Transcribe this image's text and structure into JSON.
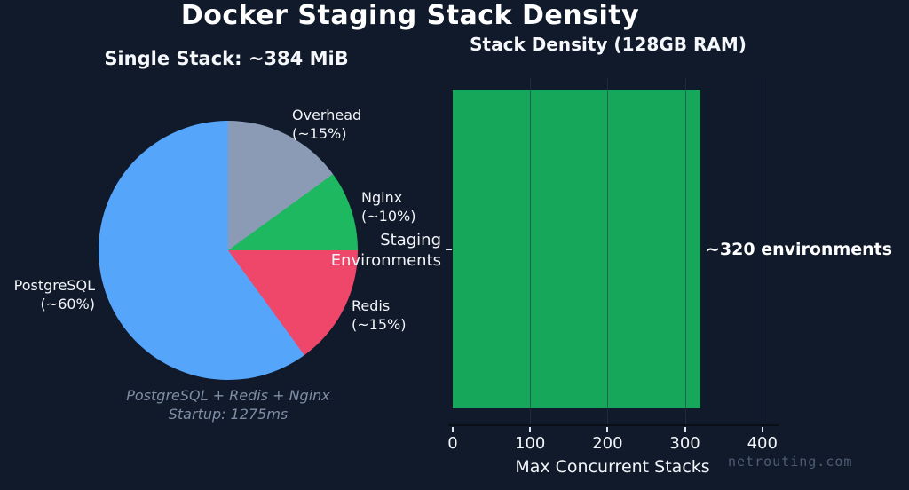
{
  "page": {
    "background": "#111a2b",
    "watermark": "netrouting.com"
  },
  "title": "Docker Staging Stack Density",
  "chart_data": [
    {
      "type": "pie",
      "title": "Single Stack: ~384 MiB",
      "start_angle": "top-clockwise",
      "slices": [
        {
          "label": "Overhead",
          "pct_label": "(~15%)",
          "value": 15,
          "color": "#8b9ab5"
        },
        {
          "label": "Nginx",
          "pct_label": "(~10%)",
          "value": 10,
          "color": "#1db860"
        },
        {
          "label": "Redis",
          "pct_label": "(~15%)",
          "value": 15,
          "color": "#ef4769"
        },
        {
          "label": "PostgreSQL",
          "pct_label": "(~60%)",
          "value": 60,
          "color": "#55a5fa"
        }
      ],
      "caption_line1": "PostgreSQL + Redis + Nginx",
      "caption_line2": "Startup: 1275ms"
    },
    {
      "type": "bar",
      "orientation": "horizontal",
      "title": "Stack Density (128GB RAM)",
      "categories": [
        "Staging Environments"
      ],
      "category_label_lines": [
        "Staging",
        "Environments"
      ],
      "values": [
        320
      ],
      "bar_color": "#16a75a",
      "xlabel": "Max Concurrent Stacks",
      "xlim": [
        0,
        400
      ],
      "xticks": [
        0,
        100,
        200,
        300,
        400
      ],
      "grid": true,
      "annotation": "~320 environments"
    }
  ]
}
